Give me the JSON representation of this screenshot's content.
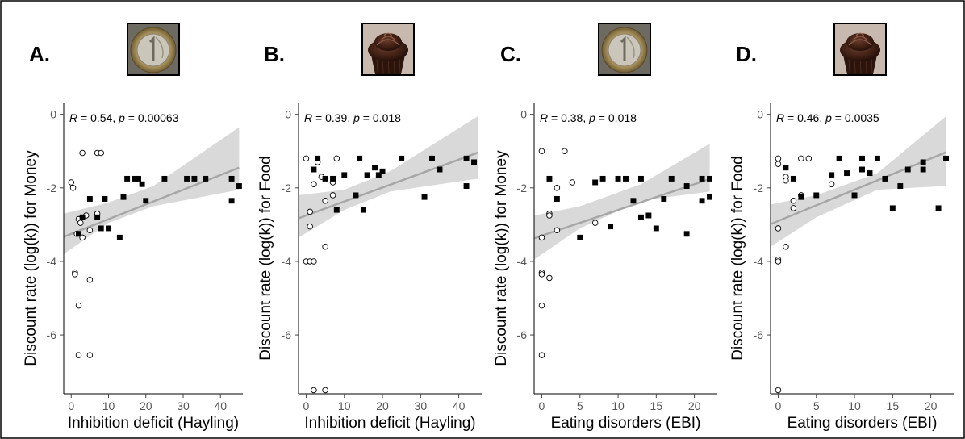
{
  "chart_data": [
    {
      "panel": "A.",
      "type": "scatter",
      "icon": "coin-icon",
      "stat_text": {
        "r": "0.54",
        "p": "0.00063"
      },
      "xlabel": "Inhibition deficit (Hayling)",
      "ylabel": "Discount rate (log(k)) for Money",
      "xlim": [
        -2,
        46
      ],
      "ylim": [
        -7.6,
        0.3
      ],
      "xticks": [
        0,
        10,
        20,
        30,
        40
      ],
      "yticks": [
        0,
        -2,
        -4,
        -6
      ],
      "fit": {
        "intercept": -3.25,
        "slope": 0.04
      },
      "ci_band": [
        [
          -2,
          -3.8,
          -2.7
        ],
        [
          10,
          -2.95,
          -2.4
        ],
        [
          22,
          -2.5,
          -1.95
        ],
        [
          45,
          -2.05,
          -0.35
        ]
      ],
      "series": [
        {
          "marker": "open",
          "points": [
            [
              0,
              -1.85
            ],
            [
              0.5,
              -2.0
            ],
            [
              1,
              -4.3
            ],
            [
              1,
              -4.35
            ],
            [
              1.5,
              -3.25
            ],
            [
              2,
              -5.2
            ],
            [
              2,
              -2.85
            ],
            [
              2,
              -6.55
            ],
            [
              2.5,
              -2.95
            ],
            [
              3,
              -1.05
            ],
            [
              3,
              -3.35
            ],
            [
              4,
              -2.75
            ],
            [
              5,
              -4.5
            ],
            [
              5,
              -3.15
            ],
            [
              5,
              -6.55
            ],
            [
              7,
              -2.7
            ],
            [
              7,
              -1.05
            ],
            [
              8,
              -1.05
            ]
          ]
        },
        {
          "marker": "filled",
          "points": [
            [
              2,
              -3.25
            ],
            [
              3,
              -2.8
            ],
            [
              5,
              -2.3
            ],
            [
              7,
              -2.8
            ],
            [
              8,
              -3.1
            ],
            [
              9,
              -2.3
            ],
            [
              10,
              -3.1
            ],
            [
              13,
              -3.35
            ],
            [
              14,
              -2.25
            ],
            [
              15,
              -1.75
            ],
            [
              17,
              -1.75
            ],
            [
              18,
              -1.75
            ],
            [
              19,
              -1.9
            ],
            [
              20,
              -2.35
            ],
            [
              25,
              -1.75
            ],
            [
              31,
              -1.75
            ],
            [
              33,
              -1.75
            ],
            [
              36,
              -1.75
            ],
            [
              43,
              -1.75
            ],
            [
              43,
              -2.35
            ],
            [
              45,
              -1.95
            ]
          ]
        }
      ]
    },
    {
      "panel": "B.",
      "type": "scatter",
      "icon": "cupcake-icon",
      "stat_text": {
        "r": "0.39",
        "p": "0.018"
      },
      "xlabel": "Inhibition deficit (Hayling)",
      "ylabel": "Discount rate (log(k)) for Food",
      "xlim": [
        -2,
        46
      ],
      "ylim": [
        -7.6,
        0.3
      ],
      "xticks": [
        0,
        10,
        20,
        30,
        40
      ],
      "yticks": [
        0,
        -2,
        -4,
        -6
      ],
      "fit": {
        "intercept": -2.75,
        "slope": 0.038
      },
      "ci_band": [
        [
          -2,
          -3.35,
          -2.2
        ],
        [
          10,
          -2.6,
          -2.05
        ],
        [
          22,
          -2.1,
          -1.55
        ],
        [
          45,
          -1.75,
          -0.05
        ]
      ],
      "series": [
        {
          "marker": "open",
          "points": [
            [
              0,
              -1.2
            ],
            [
              0,
              -4.0
            ],
            [
              1,
              -2.65
            ],
            [
              1,
              -3.05
            ],
            [
              1,
              -4.0
            ],
            [
              2,
              -4.0
            ],
            [
              2,
              -7.5
            ],
            [
              2,
              -1.9
            ],
            [
              3,
              -1.3
            ],
            [
              4,
              -1.7
            ],
            [
              5,
              -2.35
            ],
            [
              5,
              -3.6
            ],
            [
              5,
              -7.5
            ],
            [
              7,
              -2.2
            ],
            [
              7,
              -1.85
            ],
            [
              8,
              -1.2
            ]
          ]
        },
        {
          "marker": "filled",
          "points": [
            [
              2,
              -1.5
            ],
            [
              3,
              -1.2
            ],
            [
              5,
              -1.75
            ],
            [
              7,
              -1.75
            ],
            [
              8,
              -2.6
            ],
            [
              10,
              -1.65
            ],
            [
              13,
              -2.2
            ],
            [
              14,
              -1.2
            ],
            [
              15,
              -2.6
            ],
            [
              16,
              -1.65
            ],
            [
              18,
              -1.45
            ],
            [
              19,
              -1.65
            ],
            [
              20,
              -1.55
            ],
            [
              25,
              -1.2
            ],
            [
              31,
              -2.25
            ],
            [
              33,
              -1.2
            ],
            [
              35,
              -1.5
            ],
            [
              42,
              -1.2
            ],
            [
              42,
              -1.95
            ],
            [
              44,
              -1.3
            ]
          ]
        }
      ]
    },
    {
      "panel": "C.",
      "type": "scatter",
      "icon": "coin-icon",
      "stat_text": {
        "r": "0.38",
        "p": "0.018"
      },
      "xlabel": "Eating disorders (EBI)",
      "ylabel": "Discount rate (log(k)) for Money",
      "xlim": [
        -1,
        23
      ],
      "ylim": [
        -7.6,
        0.3
      ],
      "xticks": [
        0,
        5,
        10,
        15,
        20
      ],
      "yticks": [
        0,
        -2,
        -4,
        -6
      ],
      "fit": {
        "intercept": -3.3,
        "slope": 0.07
      },
      "ci_band": [
        [
          -1,
          -3.95,
          -2.75
        ],
        [
          5,
          -3.1,
          -2.5
        ],
        [
          13,
          -2.35,
          -1.9
        ],
        [
          22,
          -2.1,
          -0.8
        ]
      ],
      "series": [
        {
          "marker": "open",
          "points": [
            [
              0,
              -1.0
            ],
            [
              0,
              -3.35
            ],
            [
              0,
              -4.3
            ],
            [
              0,
              -4.35
            ],
            [
              0,
              -5.2
            ],
            [
              0,
              -6.55
            ],
            [
              1,
              -2.7
            ],
            [
              1,
              -2.75
            ],
            [
              1,
              -4.45
            ],
            [
              2,
              -2.0
            ],
            [
              2,
              -3.15
            ],
            [
              3,
              -1.0
            ],
            [
              4,
              -1.85
            ],
            [
              7,
              -2.95
            ]
          ]
        },
        {
          "marker": "filled",
          "points": [
            [
              1,
              -1.75
            ],
            [
              2,
              -2.3
            ],
            [
              5,
              -3.35
            ],
            [
              7,
              -1.85
            ],
            [
              8,
              -1.75
            ],
            [
              9,
              -3.05
            ],
            [
              10,
              -1.75
            ],
            [
              11,
              -1.75
            ],
            [
              12,
              -2.35
            ],
            [
              13,
              -1.75
            ],
            [
              13,
              -2.8
            ],
            [
              14,
              -2.75
            ],
            [
              15,
              -3.1
            ],
            [
              16,
              -2.3
            ],
            [
              17,
              -1.75
            ],
            [
              19,
              -1.95
            ],
            [
              19,
              -3.25
            ],
            [
              21,
              -1.75
            ],
            [
              21,
              -2.35
            ],
            [
              22,
              -1.75
            ],
            [
              22,
              -2.25
            ]
          ]
        }
      ]
    },
    {
      "panel": "D.",
      "type": "scatter",
      "icon": "cupcake-icon",
      "stat_text": {
        "r": "0.46",
        "p": "0.0035"
      },
      "xlabel": "Eating disorders (EBI)",
      "ylabel": "Discount rate (log(k)) for Food",
      "xlim": [
        -1,
        23
      ],
      "ylim": [
        -7.6,
        0.3
      ],
      "xticks": [
        0,
        5,
        10,
        15,
        20
      ],
      "yticks": [
        0,
        -2,
        -4,
        -6
      ],
      "fit": {
        "intercept": -2.9,
        "slope": 0.085
      },
      "ci_band": [
        [
          -1,
          -3.6,
          -2.45
        ],
        [
          5,
          -2.8,
          -2.2
        ],
        [
          13,
          -2.05,
          -1.6
        ],
        [
          22,
          -1.95,
          -0.05
        ]
      ],
      "series": [
        {
          "marker": "open",
          "points": [
            [
              0,
              -1.2
            ],
            [
              0,
              -1.35
            ],
            [
              0,
              -3.1
            ],
            [
              0,
              -3.95
            ],
            [
              0,
              -4.0
            ],
            [
              0,
              -7.5
            ],
            [
              1,
              -1.7
            ],
            [
              1,
              -1.8
            ],
            [
              1,
              -3.6
            ],
            [
              2,
              -2.35
            ],
            [
              2,
              -2.55
            ],
            [
              3,
              -1.2
            ],
            [
              3,
              -2.2
            ],
            [
              4,
              -1.2
            ],
            [
              7,
              -1.9
            ]
          ]
        },
        {
          "marker": "filled",
          "points": [
            [
              1,
              -1.45
            ],
            [
              2,
              -1.75
            ],
            [
              3,
              -2.25
            ],
            [
              5,
              -2.2
            ],
            [
              7,
              -1.65
            ],
            [
              8,
              -1.2
            ],
            [
              9,
              -1.6
            ],
            [
              10,
              -2.2
            ],
            [
              11,
              -1.2
            ],
            [
              11,
              -1.5
            ],
            [
              12,
              -1.6
            ],
            [
              13,
              -1.2
            ],
            [
              14,
              -1.75
            ],
            [
              15,
              -2.55
            ],
            [
              16,
              -1.95
            ],
            [
              17,
              -1.5
            ],
            [
              19,
              -1.3
            ],
            [
              19,
              -1.5
            ],
            [
              21,
              -2.55
            ],
            [
              22,
              -1.2
            ]
          ]
        }
      ]
    }
  ]
}
